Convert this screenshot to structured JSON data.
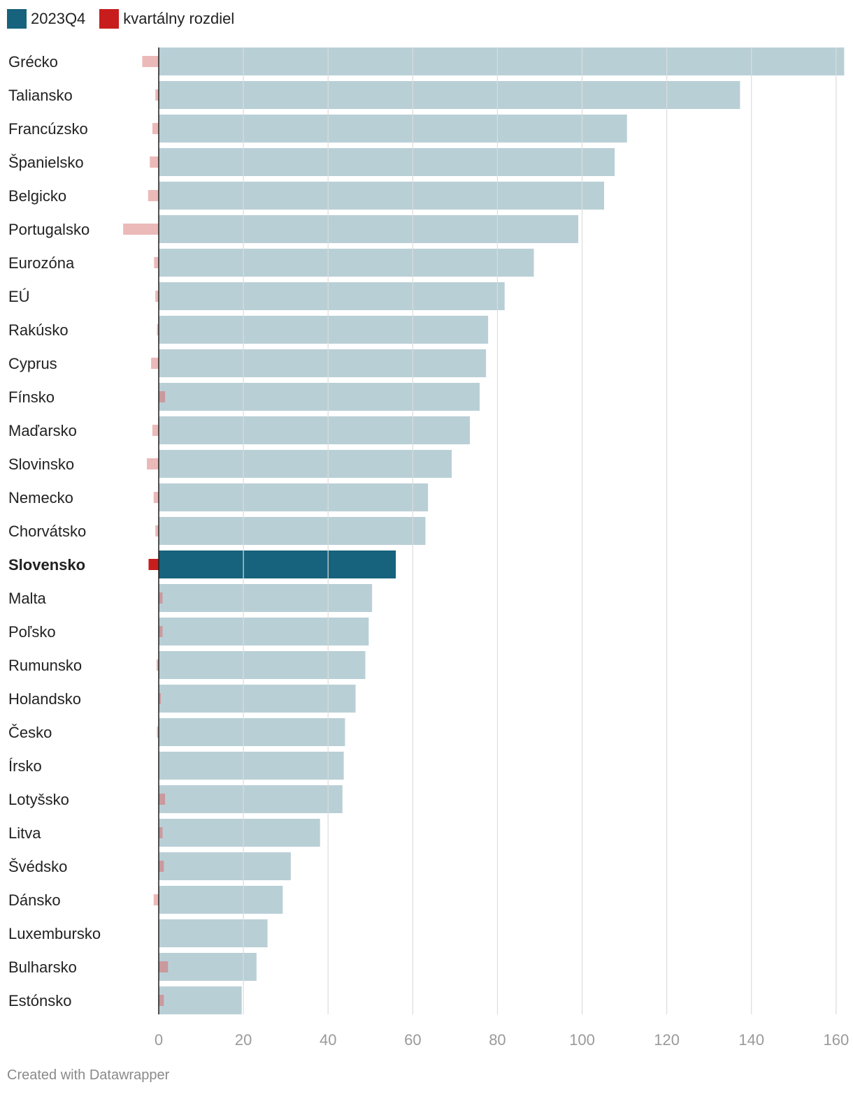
{
  "legend": [
    {
      "label": "2023Q4",
      "color": "#17627c"
    },
    {
      "label": "kvartálny rozdiel",
      "color": "#c71e1d"
    }
  ],
  "chart_data": {
    "type": "bar",
    "orientation": "horizontal",
    "highlight": "Slovensko",
    "xlim": [
      0,
      162
    ],
    "xticks": [
      0,
      20,
      40,
      60,
      80,
      100,
      120,
      140,
      160
    ],
    "colors": {
      "bar": "#b9cfd6",
      "bar_highlight": "#17627c",
      "diff": "#ecb9b9",
      "diff_highlight": "#c71e1d",
      "diff_over_bar": "#c9999c",
      "grid": "#dcdcdc",
      "axis": "#1d1d1d"
    },
    "categories": [
      "Grécko",
      "Taliansko",
      "Francúzsko",
      "Španielsko",
      "Belgicko",
      "Portugalsko",
      "Eurozóna",
      "EÚ",
      "Rakúsko",
      "Cyprus",
      "Fínsko",
      "Maďarsko",
      "Slovinsko",
      "Nemecko",
      "Chorvátsko",
      "Slovensko",
      "Malta",
      "Poľsko",
      "Rumunsko",
      "Holandsko",
      "Česko",
      "Írsko",
      "Lotyšsko",
      "Litva",
      "Švédsko",
      "Dánsko",
      "Luxembursko",
      "Bulharsko",
      "Estónsko"
    ],
    "series": [
      {
        "name": "2023Q4",
        "values": [
          161.9,
          137.3,
          110.6,
          107.7,
          105.2,
          99.1,
          88.6,
          81.7,
          77.8,
          77.3,
          75.8,
          73.5,
          69.2,
          63.6,
          63.0,
          56.0,
          50.4,
          49.6,
          48.8,
          46.5,
          44.0,
          43.7,
          43.4,
          38.1,
          31.2,
          29.3,
          25.7,
          23.1,
          19.6
        ]
      },
      {
        "name": "kvartálny rozdiel",
        "values": [
          -3.9,
          -0.8,
          -1.5,
          -2.1,
          -2.5,
          -8.4,
          -1.1,
          -0.8,
          -0.4,
          -1.8,
          1.5,
          -1.5,
          -2.8,
          -1.2,
          -0.8,
          -2.4,
          0.9,
          0.9,
          -0.5,
          0.5,
          -0.4,
          0.0,
          1.5,
          0.9,
          1.2,
          -1.2,
          0.0,
          2.2,
          1.2
        ]
      }
    ]
  },
  "footer": {
    "credit": "Created with Datawrapper"
  }
}
